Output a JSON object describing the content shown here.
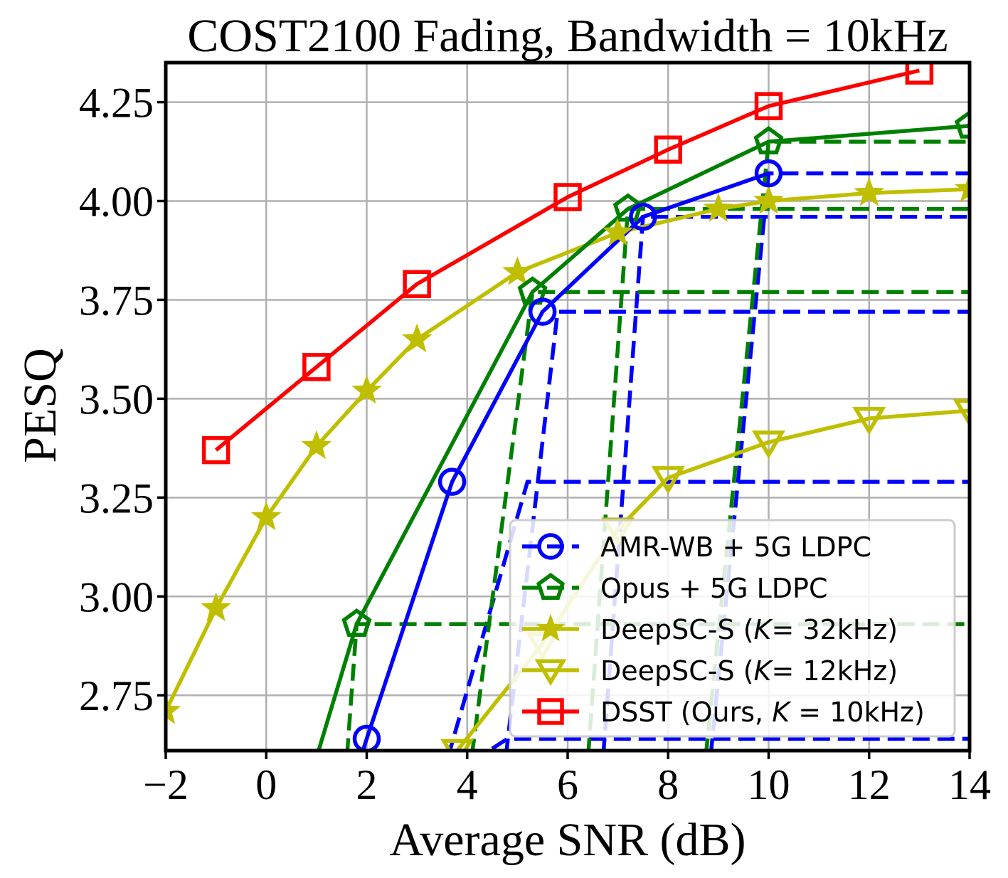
{
  "chart_data": {
    "type": "line",
    "title": "COST2100 Fading, Bandwidth = 10kHz",
    "xlabel": "Average SNR (dB)",
    "ylabel": "PESQ",
    "xlim": [
      -2,
      14
    ],
    "ylim": [
      2.61,
      4.35
    ],
    "xticks": [
      -2,
      0,
      2,
      4,
      6,
      8,
      10,
      12,
      14
    ],
    "xtick_labels": [
      "−2",
      "0",
      "2",
      "4",
      "6",
      "8",
      "10",
      "12",
      "14"
    ],
    "yticks": [
      2.75,
      3.0,
      3.25,
      3.5,
      3.75,
      4.0,
      4.25
    ],
    "ytick_labels": [
      "2.75",
      "3.00",
      "3.25",
      "3.50",
      "3.75",
      "4.00",
      "4.25"
    ],
    "grid": true,
    "legend_position": "lower-right",
    "series": [
      {
        "name": "AMR-WB + 5G LDPC",
        "color": "#0000ff",
        "marker": "circle",
        "x": [
          1.4,
          2.0,
          3.7,
          5.5,
          7.5,
          10.0
        ],
        "y": [
          2.4,
          2.64,
          3.29,
          3.72,
          3.96,
          4.07
        ]
      },
      {
        "name": "Opus + 5G LDPC",
        "color": "#008000",
        "marker": "pentagon",
        "x": [
          0.9,
          1.8,
          5.3,
          7.2,
          10.0,
          14.0
        ],
        "y": [
          2.55,
          2.93,
          3.77,
          3.98,
          4.15,
          4.19
        ]
      },
      {
        "name": "DeepSC-S (K= 32kHz)",
        "color": "#bfbf00",
        "marker": "star",
        "x": [
          -2,
          -1,
          0,
          1,
          2,
          3,
          5,
          7,
          9,
          10,
          12,
          14
        ],
        "y": [
          2.71,
          2.97,
          3.2,
          3.38,
          3.52,
          3.65,
          3.82,
          3.92,
          3.98,
          4.0,
          4.02,
          4.03
        ]
      },
      {
        "name": "DeepSC-S (K= 12kHz)",
        "color": "#bfbf00",
        "marker": "triangle-down",
        "x": [
          3.8,
          5.5,
          7.0,
          8.0,
          10.0,
          12.0,
          14.0
        ],
        "y": [
          2.61,
          2.88,
          3.17,
          3.3,
          3.39,
          3.45,
          3.47
        ]
      },
      {
        "name": "DSST (Ours, K = 10kHz)",
        "color": "#ff0000",
        "marker": "square",
        "x": [
          -1,
          1,
          3,
          6,
          8,
          10,
          13
        ],
        "y": [
          3.37,
          3.58,
          3.79,
          4.01,
          4.13,
          4.24,
          4.33
        ]
      }
    ],
    "threshold_curves": [
      {
        "series": "AMR-WB + 5G LDPC",
        "color": "#0000ff",
        "x_step": [
          2.0,
          4.8
        ],
        "x_end": 14,
        "level": 2.64
      },
      {
        "series": "AMR-WB + 5G LDPC",
        "color": "#0000ff",
        "x_step": [
          3.2,
          5.2
        ],
        "x_end": 14,
        "level": 3.29
      },
      {
        "series": "AMR-WB + 5G LDPC",
        "color": "#0000ff",
        "x_step": [
          4.6,
          5.8
        ],
        "x_end": 14,
        "level": 3.72
      },
      {
        "series": "AMR-WB + 5G LDPC",
        "color": "#0000ff",
        "x_step": [
          6.6,
          7.5
        ],
        "x_end": 14,
        "level": 3.96
      },
      {
        "series": "AMR-WB + 5G LDPC",
        "color": "#0000ff",
        "x_step": [
          8.7,
          10.0
        ],
        "x_end": 14,
        "level": 4.07
      },
      {
        "series": "Opus + 5G LDPC",
        "color": "#008000",
        "x_step": [
          1.5,
          1.8
        ],
        "x_end": 14,
        "level": 2.93
      },
      {
        "series": "Opus + 5G LDPC",
        "color": "#008000",
        "x_step": [
          3.9,
          5.3
        ],
        "x_end": 14,
        "level": 3.77
      },
      {
        "series": "Opus + 5G LDPC",
        "color": "#008000",
        "x_step": [
          6.3,
          7.2
        ],
        "x_end": 14,
        "level": 3.98
      },
      {
        "series": "Opus + 5G LDPC",
        "color": "#008000",
        "x_step": [
          8.6,
          10.0
        ],
        "x_end": 14,
        "level": 4.15
      }
    ]
  },
  "legend": {
    "entries": [
      {
        "pre": "AMR-WB + 5G LDPC",
        "k": "",
        "post": ""
      },
      {
        "pre": "Opus + 5G LDPC",
        "k": "",
        "post": ""
      },
      {
        "pre": "DeepSC-S (",
        "k": "K",
        "post": "= 32kHz)"
      },
      {
        "pre": "DeepSC-S (",
        "k": "K",
        "post": "= 12kHz)"
      },
      {
        "pre": "DSST (Ours, ",
        "k": "K",
        "post": " = 10kHz)"
      }
    ]
  }
}
